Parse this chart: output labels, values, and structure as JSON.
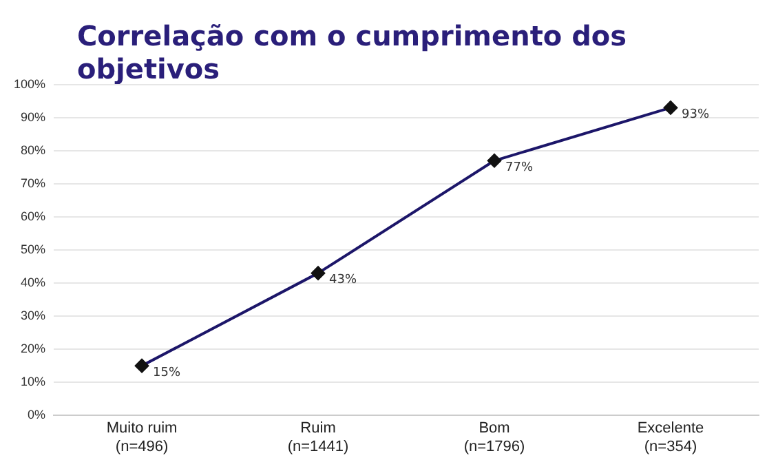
{
  "chart_data": {
    "type": "line",
    "title": "Correlação com o cumprimento dos objetivos",
    "categories": [
      "Muito ruim\n(n=496)",
      "Ruim\n(n=1441)",
      "Bom\n(n=1796)",
      "Excelente\n(n=354)"
    ],
    "values": [
      15,
      43,
      77,
      93
    ],
    "value_labels": [
      "15%",
      "43%",
      "77%",
      "93%"
    ],
    "color": "#1c1669",
    "ylim": [
      0,
      100
    ],
    "yticks": [
      {
        "value": 0,
        "label": "0%"
      },
      {
        "value": 10,
        "label": "10%"
      },
      {
        "value": 20,
        "label": "20%"
      },
      {
        "value": 30,
        "label": "30%"
      },
      {
        "value": 40,
        "label": "40%"
      },
      {
        "value": 50,
        "label": "50%"
      },
      {
        "value": 60,
        "label": "60%"
      },
      {
        "value": 70,
        "label": "70%"
      },
      {
        "value": 80,
        "label": "80%"
      },
      {
        "value": 90,
        "label": "90%"
      },
      {
        "value": 100,
        "label": "100%"
      }
    ],
    "grid": "y",
    "marker": "diamond",
    "line_style": "solid",
    "legend": false
  }
}
